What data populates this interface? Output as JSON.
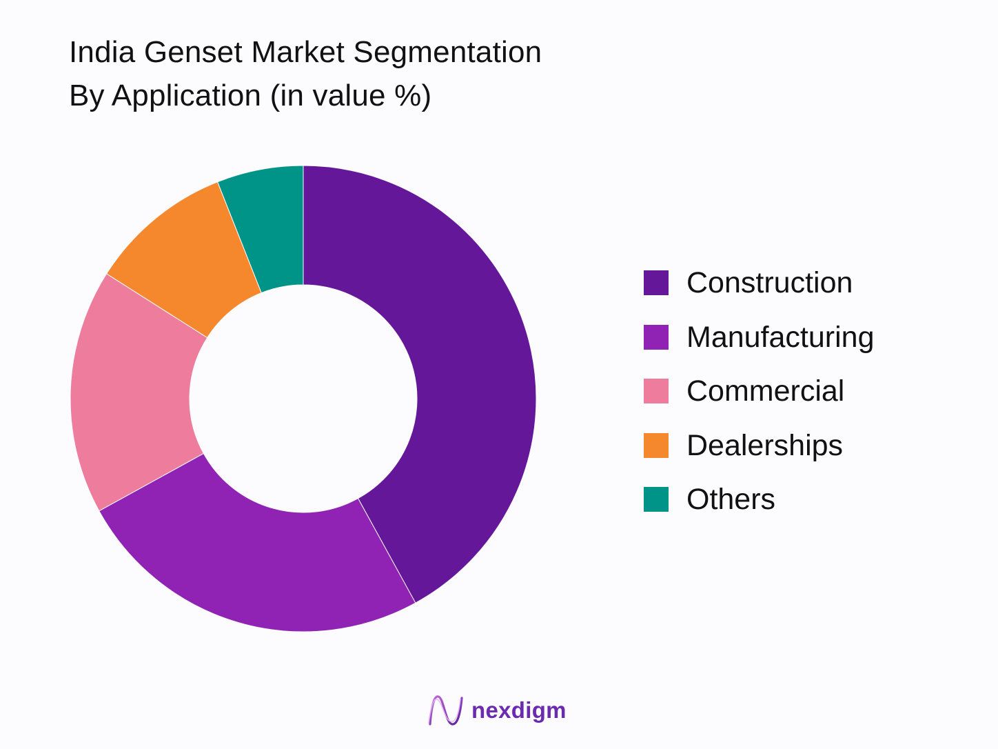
{
  "chart_data": {
    "type": "pie",
    "title": "India Genset Market Segmentation",
    "subtitle": "By Application (in value %)",
    "categories": [
      "Construction",
      "Manufacturing",
      "Commercial",
      "Dealerships",
      "Others"
    ],
    "values": [
      42,
      25,
      17,
      10,
      6
    ],
    "colors": [
      "#65179a",
      "#9023b3",
      "#ee7c9c",
      "#f5882c",
      "#009488"
    ],
    "legend_position": "right",
    "donut": true
  },
  "legend": {
    "items": [
      {
        "label": "Construction",
        "color": "#65179a"
      },
      {
        "label": "Manufacturing",
        "color": "#9023b3"
      },
      {
        "label": "Commercial",
        "color": "#ee7c9c"
      },
      {
        "label": "Dealerships",
        "color": "#f5882c"
      },
      {
        "label": "Others",
        "color": "#009488"
      }
    ]
  },
  "brand": {
    "name": "nexdigm",
    "logo_icon": "nexdigm-wave-logo",
    "color": "#6b2bb0"
  }
}
